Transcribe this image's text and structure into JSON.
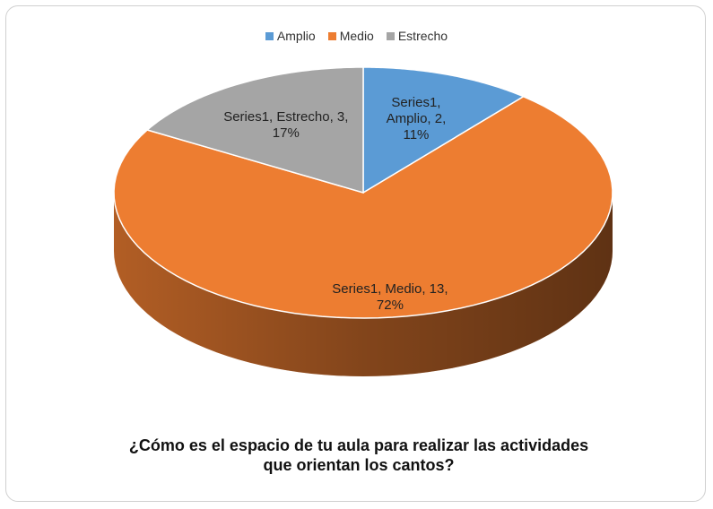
{
  "chart_data": {
    "type": "pie",
    "title": "¿Cómo es el espacio de tu aula para realizar las actividades que orientan los cantos?",
    "series": [
      {
        "name": "Series1",
        "categories": [
          "Amplio",
          "Medio",
          "Estrecho"
        ],
        "values": [
          2,
          13,
          3
        ],
        "value_labels": [
          "Series1, Amplio, 2, 11%",
          "Series1, Medio, 13, 72%",
          "Series1, Estrecho, 3, 17%"
        ],
        "colors": [
          "#5b9bd5",
          "#ed7d31",
          "#a5a5a5"
        ]
      }
    ],
    "legend": "top",
    "three_d": true
  }
}
